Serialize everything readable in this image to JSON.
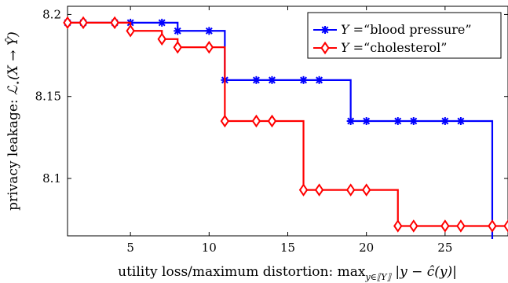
{
  "chart_data": {
    "type": "line",
    "xlabel": {
      "prefix": "utility loss/maximum distortion: ",
      "math": "max",
      "sub": "y∈⟦Y⟧",
      "suffix": " |y − ĉ(y)|"
    },
    "ylabel": {
      "prefix": "privacy leakage: ",
      "math": "ℒ",
      "sub": "⋆",
      "suffix": "(X → Ŷ)"
    },
    "xlim": [
      1,
      29
    ],
    "ylim": [
      8.065,
      8.205
    ],
    "xticks": [
      5,
      10,
      15,
      20,
      25
    ],
    "yticks": [
      8.1,
      8.15,
      8.2
    ],
    "xtick_labels": [
      "5",
      "10",
      "15",
      "20",
      "25"
    ],
    "ytick_labels": [
      "8.1",
      "8.15",
      "8.2"
    ],
    "legend_position": "top-right",
    "step": "post",
    "series": [
      {
        "name": "Y =“blood pressure”",
        "legend_math": "Y",
        "legend_text": " =“blood pressure”",
        "color": "#0000ff",
        "marker": "asterisk",
        "x": [
          1,
          2,
          4,
          5,
          7,
          8,
          10,
          11,
          13,
          14,
          16,
          17,
          19,
          20,
          22,
          23,
          25,
          26,
          28,
          29
        ],
        "y": [
          8.195,
          8.195,
          8.195,
          8.195,
          8.195,
          8.19,
          8.19,
          8.16,
          8.16,
          8.16,
          8.16,
          8.16,
          8.135,
          8.135,
          8.135,
          8.135,
          8.135,
          8.135,
          8.06,
          8.06
        ]
      },
      {
        "name": "Y =“cholesterol”",
        "legend_math": "Y",
        "legend_text": " =“cholesterol”",
        "color": "#ff0000",
        "marker": "diamond",
        "x": [
          1,
          2,
          4,
          5,
          7,
          8,
          10,
          11,
          13,
          14,
          16,
          17,
          19,
          20,
          22,
          23,
          25,
          26,
          28,
          29
        ],
        "y": [
          8.195,
          8.195,
          8.195,
          8.19,
          8.185,
          8.18,
          8.18,
          8.135,
          8.135,
          8.135,
          8.093,
          8.093,
          8.093,
          8.093,
          8.071,
          8.071,
          8.071,
          8.071,
          8.071,
          8.071
        ]
      }
    ]
  }
}
